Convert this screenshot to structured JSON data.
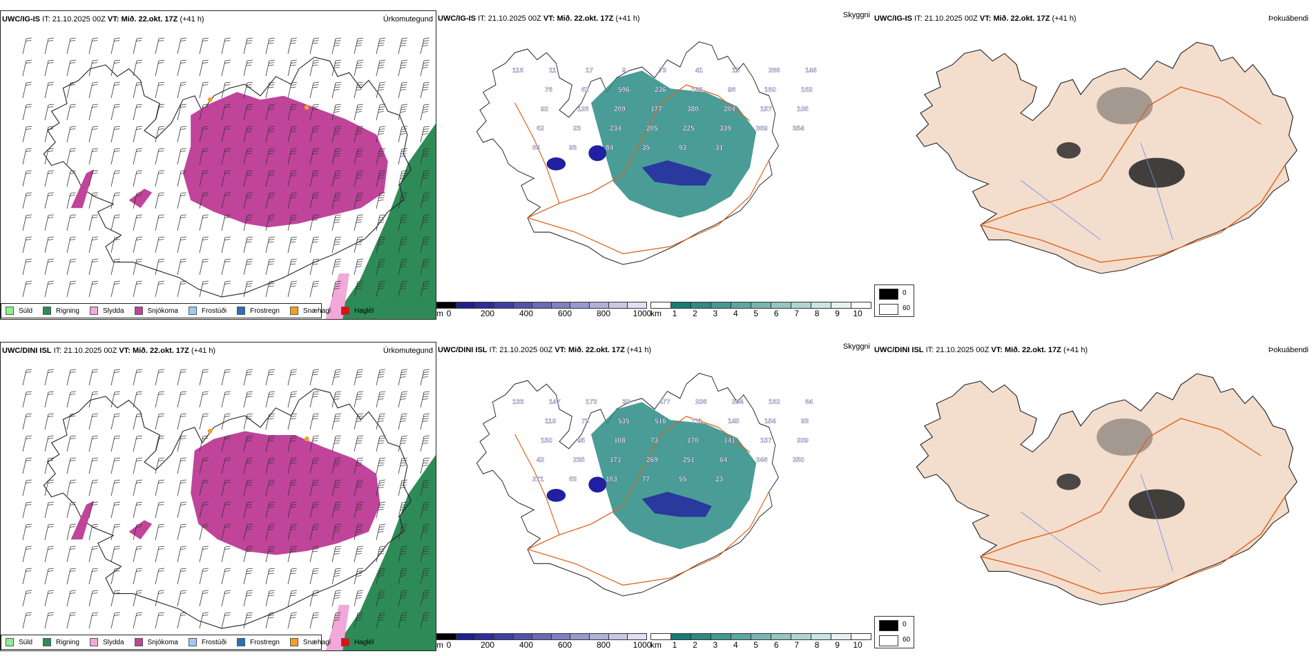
{
  "rows": [
    {
      "model": "UWC/IG-IS",
      "it_label": "IT:",
      "it_value": "21.10.2025 00Z",
      "vt_label": "VT:",
      "vt_value": "Mið. 22.okt. 17Z",
      "lead": "(+41 h)",
      "snow_labels": [
        "116",
        "11",
        "17",
        "9",
        "73",
        "41",
        "15",
        "286",
        "146",
        "76",
        "62",
        "596",
        "236",
        "193",
        "98",
        "160",
        "162",
        "92",
        "126",
        "209",
        "177",
        "380",
        "204",
        "157",
        "105",
        "62",
        "23",
        "234",
        "205",
        "225",
        "339",
        "369",
        "354",
        "86",
        "93",
        "84",
        "35",
        "93",
        "31"
      ]
    },
    {
      "model": "UWC/DINI ISL",
      "it_label": "IT:",
      "it_value": "21.10.2025 00Z",
      "vt_label": "VT:",
      "vt_value": "Mið. 22.okt. 17Z",
      "lead": "(+41 h)",
      "snow_labels": [
        "133",
        "147",
        "173",
        "30",
        "477",
        "206",
        "204",
        "162",
        "84",
        "110",
        "73",
        "535",
        "516",
        "711",
        "145",
        "154",
        "93",
        "150",
        "95",
        "108",
        "73",
        "170",
        "141",
        "157",
        "209",
        "42",
        "235",
        "171",
        "269",
        "251",
        "64",
        "248",
        "250",
        "271",
        "83",
        "103",
        "77",
        "55",
        "23"
      ]
    }
  ],
  "panel_titles": {
    "precip_type": "Úrkomutegund",
    "visibility": "Skyggni",
    "fog": "Þokuábendi"
  },
  "precip_legend": [
    {
      "label": "Súld",
      "color": "#90ee90"
    },
    {
      "label": "Rigning",
      "color": "#2e8b57"
    },
    {
      "label": "Slydda",
      "color": "#f2a8d8"
    },
    {
      "label": "Snjókoma",
      "color": "#c0449a"
    },
    {
      "label": "Frostúði",
      "color": "#9ec9f5"
    },
    {
      "label": "Frostregn",
      "color": "#2a6fb8"
    },
    {
      "label": "Snæhagl",
      "color": "#f5a020"
    },
    {
      "label": "Haglél",
      "color": "#e31010"
    }
  ],
  "height_colorbar": {
    "unit": "m",
    "ticks": [
      "0",
      "200",
      "400",
      "600",
      "800",
      "1000"
    ],
    "colors": [
      "#000000",
      "#1f1f8c",
      "#2e2e96",
      "#3f3fa0",
      "#5353aa",
      "#6a6ab5",
      "#8080c0",
      "#9898cc",
      "#b0b0d8",
      "#c8c8e5",
      "#e0e0f2"
    ]
  },
  "cloud_colorbar": {
    "unit": "km",
    "ticks": [
      "1",
      "2",
      "3",
      "4",
      "5",
      "6",
      "7",
      "8",
      "9",
      "10"
    ],
    "colors": [
      "#ffffff",
      "#1a7a74",
      "#2f8984",
      "#469893",
      "#5da7a2",
      "#78b5b1",
      "#93c5c1",
      "#afd5d2",
      "#cae4e2",
      "#e5f2f1",
      "#ffffff"
    ]
  },
  "fog_legend": [
    {
      "label": "0",
      "color": "#000000"
    },
    {
      "label": "60",
      "color": "#ffffff"
    }
  ],
  "colors": {
    "land": "#f3ddcc",
    "roads": "#e0601a",
    "rivers": "#6f8ef0",
    "vis_teal": "#2a8c84",
    "vis_blue": "#2020a0"
  }
}
